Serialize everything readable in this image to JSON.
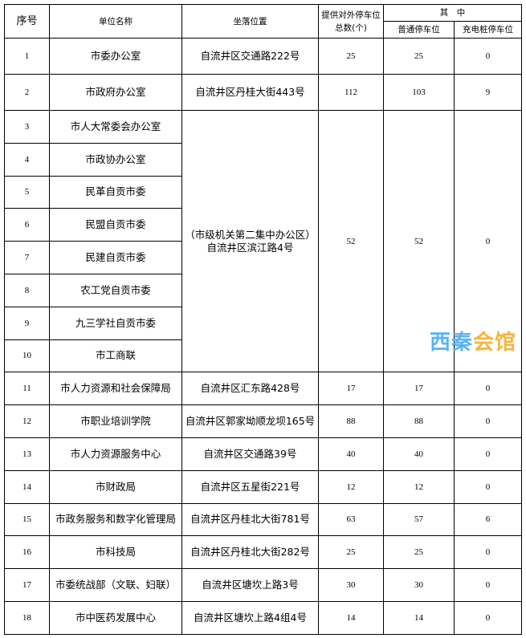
{
  "header": {
    "index": "序号",
    "name": "单位名称",
    "location": "坐落位置",
    "total": "提供对外停车位总数(个)",
    "group": "其　中",
    "regular": "普通停车位",
    "charging": "充电桩停车位"
  },
  "rows": [
    {
      "no": "1",
      "name": "市委办公室",
      "location": "自流井区交通路222号",
      "total": "25",
      "regular": "25",
      "charging": "0"
    },
    {
      "no": "2",
      "name": "市政府办公室",
      "location": "自流井区丹桂大街443号",
      "total": "112",
      "regular": "103",
      "charging": "9"
    }
  ],
  "group_rows": {
    "names": [
      {
        "no": "3",
        "name": "市人大常委会办公室"
      },
      {
        "no": "4",
        "name": "市政协办公室"
      },
      {
        "no": "5",
        "name": "民革自贡市委"
      },
      {
        "no": "6",
        "name": "民盟自贡市委"
      },
      {
        "no": "7",
        "name": "民建自贡市委"
      },
      {
        "no": "8",
        "name": "农工党自贡市委"
      },
      {
        "no": "9",
        "name": "九三学社自贡市委"
      },
      {
        "no": "10",
        "name": "市工商联"
      }
    ],
    "location_line1": "（市级机关第二集中办公区）",
    "location_line2": "自流井区滨江路4号",
    "total": "52",
    "regular": "52",
    "charging": "0"
  },
  "rows2": [
    {
      "no": "11",
      "name": "市人力资源和社会保障局",
      "location": "自流井区汇东路428号",
      "total": "17",
      "regular": "17",
      "charging": "0"
    },
    {
      "no": "12",
      "name": "市职业培训学院",
      "location": "自流井区郭家坳顺龙坝165号",
      "total": "88",
      "regular": "88",
      "charging": "0"
    },
    {
      "no": "13",
      "name": "市人力资源服务中心",
      "location": "自流井区交通路39号",
      "total": "40",
      "regular": "40",
      "charging": "0"
    },
    {
      "no": "14",
      "name": "市财政局",
      "location": "自流井区五星街221号",
      "total": "12",
      "regular": "12",
      "charging": "0"
    },
    {
      "no": "15",
      "name": "市政务服务和数字化管理局",
      "location": "自流井区丹桂北大街781号",
      "total": "63",
      "regular": "57",
      "charging": "6"
    },
    {
      "no": "16",
      "name": "市科技局",
      "location": "自流井区丹桂北大街282号",
      "total": "25",
      "regular": "25",
      "charging": "0"
    },
    {
      "no": "17",
      "name": "市委统战部（文联、妇联）",
      "location": "自流井区塘坎上路3号",
      "total": "30",
      "regular": "30",
      "charging": "0"
    },
    {
      "no": "18",
      "name": "市中医药发展中心",
      "location": "自流井区塘坎上路4组4号",
      "total": "14",
      "regular": "14",
      "charging": "0"
    }
  ],
  "watermark": {
    "part1": "西秦",
    "part2": "会馆"
  }
}
